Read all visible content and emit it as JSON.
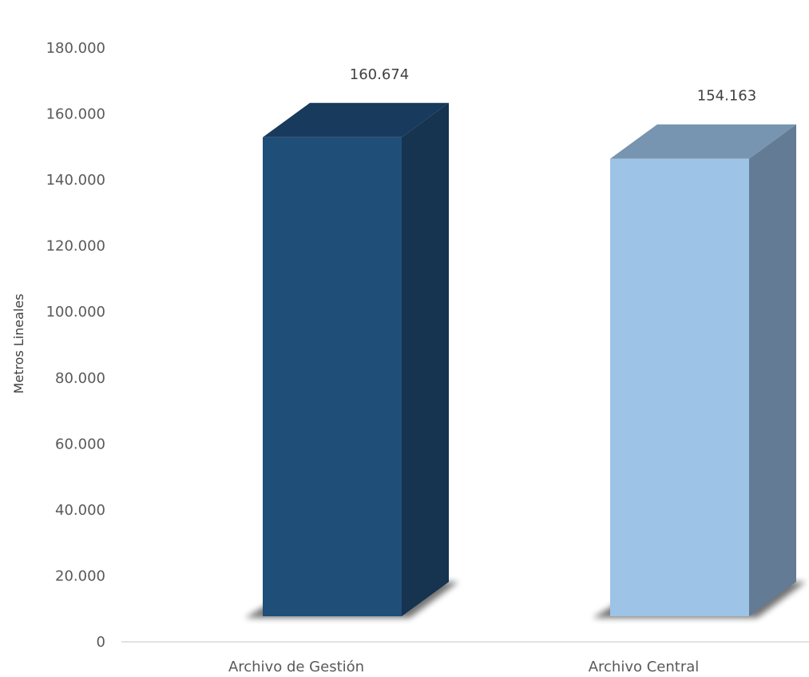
{
  "chart_data": {
    "type": "bar",
    "categories": [
      "Archivo de Gestión",
      "Archivo Central"
    ],
    "values": [
      160674,
      154163
    ],
    "value_labels": [
      "160.674",
      "154.163"
    ],
    "ylabel": "Metros Lineales",
    "ylim": [
      0,
      180000
    ],
    "yticks": [
      0,
      20000,
      40000,
      60000,
      80000,
      100000,
      120000,
      140000,
      160000,
      180000
    ],
    "ytick_labels": [
      "0",
      "20.000",
      "40.000",
      "60.000",
      "80.000",
      "100.000",
      "120.000",
      "140.000",
      "160.000",
      "180.000"
    ],
    "grid": false,
    "legend": "none",
    "colors": {
      "bar1_front": "#1f4e79",
      "bar1_side": "#16334f",
      "bar1_top": "#183a5c",
      "bar2_front": "#9dc3e6",
      "bar2_side": "#637b94",
      "bar2_top": "#7794b0",
      "axis": "#d9d9d9"
    }
  }
}
